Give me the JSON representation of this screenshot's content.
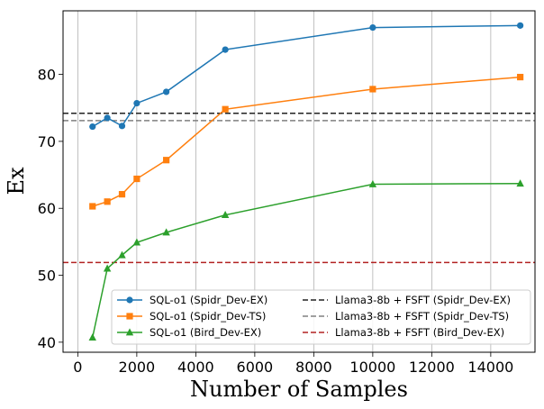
{
  "chart_data": {
    "type": "line",
    "xlabel": "Number of Samples",
    "ylabel": "Ex",
    "xlim": [
      -500,
      15500
    ],
    "ylim": [
      38.5,
      89.5
    ],
    "xticks": [
      0,
      2000,
      4000,
      6000,
      8000,
      10000,
      12000,
      14000
    ],
    "yticks": [
      40,
      50,
      60,
      70,
      80
    ],
    "grid": "vertical",
    "legend_position": "lower-right",
    "series": [
      {
        "name": "SQL-o1 (Spidr_Dev-EX)",
        "color": "#1f77b4",
        "marker": "circle",
        "x": [
          500,
          1000,
          1500,
          2000,
          3000,
          5000,
          10000,
          15000
        ],
        "y": [
          72.2,
          73.5,
          72.3,
          75.7,
          77.4,
          83.7,
          87.0,
          87.3
        ]
      },
      {
        "name": "SQL-o1 (Spidr_Dev-TS)",
        "color": "#ff7f0e",
        "marker": "square",
        "x": [
          500,
          1000,
          1500,
          2000,
          3000,
          5000,
          10000,
          15000
        ],
        "y": [
          60.3,
          61.0,
          62.1,
          64.4,
          67.2,
          74.8,
          77.8,
          79.6
        ]
      },
      {
        "name": "SQL-o1 (Bird_Dev-EX)",
        "color": "#2ca02c",
        "marker": "triangle",
        "x": [
          500,
          1000,
          1500,
          2000,
          3000,
          5000,
          10000,
          15000
        ],
        "y": [
          40.7,
          51.0,
          53.0,
          54.9,
          56.4,
          59.0,
          63.6,
          63.7
        ]
      }
    ],
    "reference_lines": [
      {
        "name": "Llama3-8b + FSFT (Spidr_Dev-EX)",
        "color": "#222222",
        "style": "dashed",
        "y": 74.2
      },
      {
        "name": "Llama3-8b + FSFT (Spidr_Dev-TS)",
        "color": "#808080",
        "style": "dashed",
        "y": 73.1
      },
      {
        "name": "Llama3-8b + FSFT (Bird_Dev-EX)",
        "color": "#b22222",
        "style": "dashed",
        "y": 51.9
      }
    ]
  }
}
